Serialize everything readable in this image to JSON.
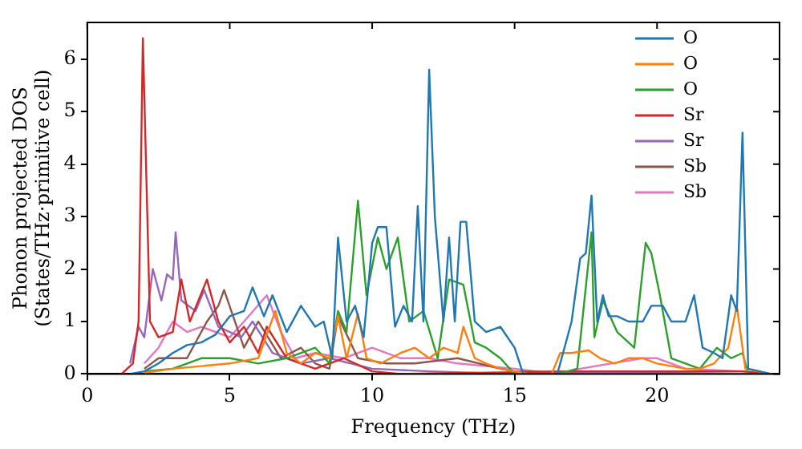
{
  "chart_data": {
    "type": "line",
    "xlabel": "Frequency (THz)",
    "ylabel": "Phonon projected DOS\n(States/THz·primitive cell)",
    "xlim": [
      0,
      24.3
    ],
    "ylim": [
      0,
      6.7
    ],
    "xticks": [
      0,
      5,
      10,
      15,
      20
    ],
    "yticks": [
      0,
      1,
      2,
      3,
      4,
      5,
      6
    ],
    "grid": false,
    "legend": "top right",
    "marker": "none",
    "line_style": "solid",
    "series": [
      {
        "name": "O",
        "color": "#1f77b4",
        "x": [
          1.5,
          2,
          2.5,
          3,
          3.5,
          4,
          4.5,
          5,
          5.5,
          5.8,
          6.2,
          6.5,
          7,
          7.5,
          8,
          8.3,
          8.6,
          8.8,
          9.1,
          9.4,
          9.7,
          10,
          10.2,
          10.5,
          10.8,
          11.1,
          11.4,
          11.6,
          11.8,
          12.0,
          12.2,
          12.5,
          12.7,
          12.9,
          13.1,
          13.3,
          13.6,
          14,
          14.5,
          15,
          15.3,
          16.5,
          17,
          17.3,
          17.5,
          17.7,
          17.9,
          18.1,
          18.3,
          18.6,
          19,
          19.5,
          19.8,
          20.2,
          20.5,
          21,
          21.3,
          21.6,
          22,
          22.3,
          22.6,
          22.8,
          23.0,
          23.2,
          24
        ],
        "values": [
          0,
          0.05,
          0.2,
          0.4,
          0.55,
          0.6,
          0.75,
          1.1,
          1.2,
          1.65,
          1.1,
          1.5,
          0.8,
          1.3,
          0.9,
          1.0,
          0.3,
          2.6,
          1.0,
          1.3,
          0.7,
          2.5,
          2.8,
          2.8,
          0.9,
          1.3,
          1.0,
          3.2,
          1.0,
          5.8,
          3.0,
          1.0,
          2.6,
          1.0,
          2.9,
          2.9,
          1.0,
          0.8,
          0.9,
          0.5,
          0,
          0,
          1.0,
          2.2,
          2.3,
          3.4,
          1.0,
          1.5,
          1.1,
          1.1,
          1.0,
          1.0,
          1.3,
          1.3,
          1.0,
          1.0,
          1.5,
          0.5,
          0.4,
          0.3,
          1.5,
          1.2,
          4.6,
          0.1,
          0
        ]
      },
      {
        "name": "O",
        "color": "#ff7f0e",
        "x": [
          2,
          3,
          4,
          5,
          6,
          6.6,
          7,
          7.5,
          8,
          8.5,
          8.8,
          9.1,
          9.5,
          9.8,
          10.3,
          11,
          11.5,
          12,
          12.5,
          13,
          13.2,
          13.6,
          14,
          14.5,
          15,
          15.5,
          16.3,
          16.6,
          17,
          17.6,
          18,
          18.5,
          19,
          19.5,
          20,
          20.5,
          21,
          21.5,
          22,
          22.5,
          22.8,
          23.1,
          24
        ],
        "values": [
          0.02,
          0.1,
          0.15,
          0.2,
          0.3,
          1.2,
          0.4,
          0.2,
          0.4,
          0.3,
          1.1,
          0.3,
          1.15,
          0.3,
          0.2,
          0.4,
          0.5,
          0.3,
          0.5,
          0.4,
          0.9,
          0.3,
          0.2,
          0.1,
          0.05,
          0,
          0,
          0.4,
          0.4,
          0.45,
          0.3,
          0.2,
          0.3,
          0.3,
          0.2,
          0.15,
          0.1,
          0.1,
          0.2,
          0.5,
          1.3,
          0.1,
          0
        ]
      },
      {
        "name": "O",
        "color": "#2ca02c",
        "x": [
          2,
          3,
          4,
          5,
          6,
          7,
          8,
          8.5,
          8.8,
          9.1,
          9.5,
          9.8,
          10.2,
          10.5,
          10.9,
          11.3,
          11.8,
          12.3,
          12.7,
          13.2,
          13.6,
          14,
          14.5,
          15,
          16.5,
          17.2,
          17.7,
          17.8,
          18.1,
          18.6,
          19.2,
          19.6,
          19.8,
          20.1,
          20.5,
          21.5,
          22.1,
          22.6,
          23,
          23.2,
          24
        ],
        "values": [
          0.05,
          0.1,
          0.3,
          0.3,
          0.2,
          0.3,
          0.5,
          0.2,
          1.2,
          0.8,
          3.3,
          1.5,
          2.6,
          2.0,
          2.6,
          1.0,
          1.2,
          0.3,
          1.8,
          1.7,
          0.6,
          0.5,
          0.3,
          0,
          0,
          0.1,
          2.7,
          0.7,
          1.4,
          0.8,
          0.5,
          2.5,
          2.3,
          1.5,
          0.3,
          0.1,
          0.5,
          0.3,
          0.4,
          0,
          0
        ]
      },
      {
        "name": "Sr",
        "color": "#d62728",
        "x": [
          1.2,
          1.6,
          1.8,
          1.95,
          2.2,
          2.5,
          3.0,
          3.3,
          3.6,
          4.2,
          4.6,
          5,
          5.5,
          6,
          6.3,
          7,
          8,
          9,
          10,
          11,
          17,
          20,
          23,
          24
        ],
        "values": [
          0,
          0.2,
          1.0,
          6.4,
          1.0,
          0.7,
          0.8,
          1.8,
          1.0,
          1.8,
          1.0,
          0.6,
          0.9,
          0.4,
          0.9,
          0.3,
          0.1,
          0.3,
          0.05,
          0,
          0.05,
          0.05,
          0.05,
          0
        ]
      },
      {
        "name": "Sr",
        "color": "#9467bd",
        "x": [
          1.5,
          1.8,
          2.0,
          2.3,
          2.6,
          2.8,
          3.0,
          3.1,
          3.3,
          3.8,
          4.1,
          4.6,
          5.4,
          5.8,
          6.5,
          7.5,
          8.5,
          10,
          12,
          15,
          18,
          24
        ],
        "values": [
          0.2,
          0.9,
          0.7,
          2.0,
          1.4,
          1.9,
          1.8,
          2.7,
          1.4,
          1.2,
          1.6,
          0.9,
          0.7,
          1.0,
          0.4,
          0.2,
          0.3,
          0.1,
          0.05,
          0,
          0.02,
          0
        ]
      },
      {
        "name": "Sb",
        "color": "#8c564b",
        "x": [
          2,
          2.5,
          3.5,
          4.2,
          4.6,
          4.8,
          5.5,
          6.0,
          6.8,
          7.5,
          8,
          8.5,
          8.8,
          9.5,
          10.5,
          11.5,
          13,
          14.5,
          15,
          24
        ],
        "values": [
          0.1,
          0.3,
          0.3,
          1.0,
          1.3,
          1.6,
          0.5,
          1.0,
          0.3,
          0.5,
          0.2,
          0.1,
          1.1,
          0.3,
          0.2,
          0.2,
          0.3,
          0.1,
          0.05,
          0
        ]
      },
      {
        "name": "Sb",
        "color": "#e377c2",
        "x": [
          2,
          2.5,
          3.0,
          3.5,
          4,
          5,
          5.5,
          6.3,
          6.8,
          7.3,
          8,
          9,
          10,
          11,
          12,
          13,
          15,
          16.5,
          17.3,
          19.5,
          20,
          21,
          23,
          24
        ],
        "values": [
          0.2,
          0.5,
          1.0,
          0.8,
          0.9,
          0.7,
          1.0,
          1.5,
          0.8,
          0.3,
          0.4,
          0.3,
          0.5,
          0.3,
          0.3,
          0.2,
          0.1,
          0,
          0.1,
          0.3,
          0.3,
          0.1,
          0.05,
          0
        ]
      }
    ]
  }
}
